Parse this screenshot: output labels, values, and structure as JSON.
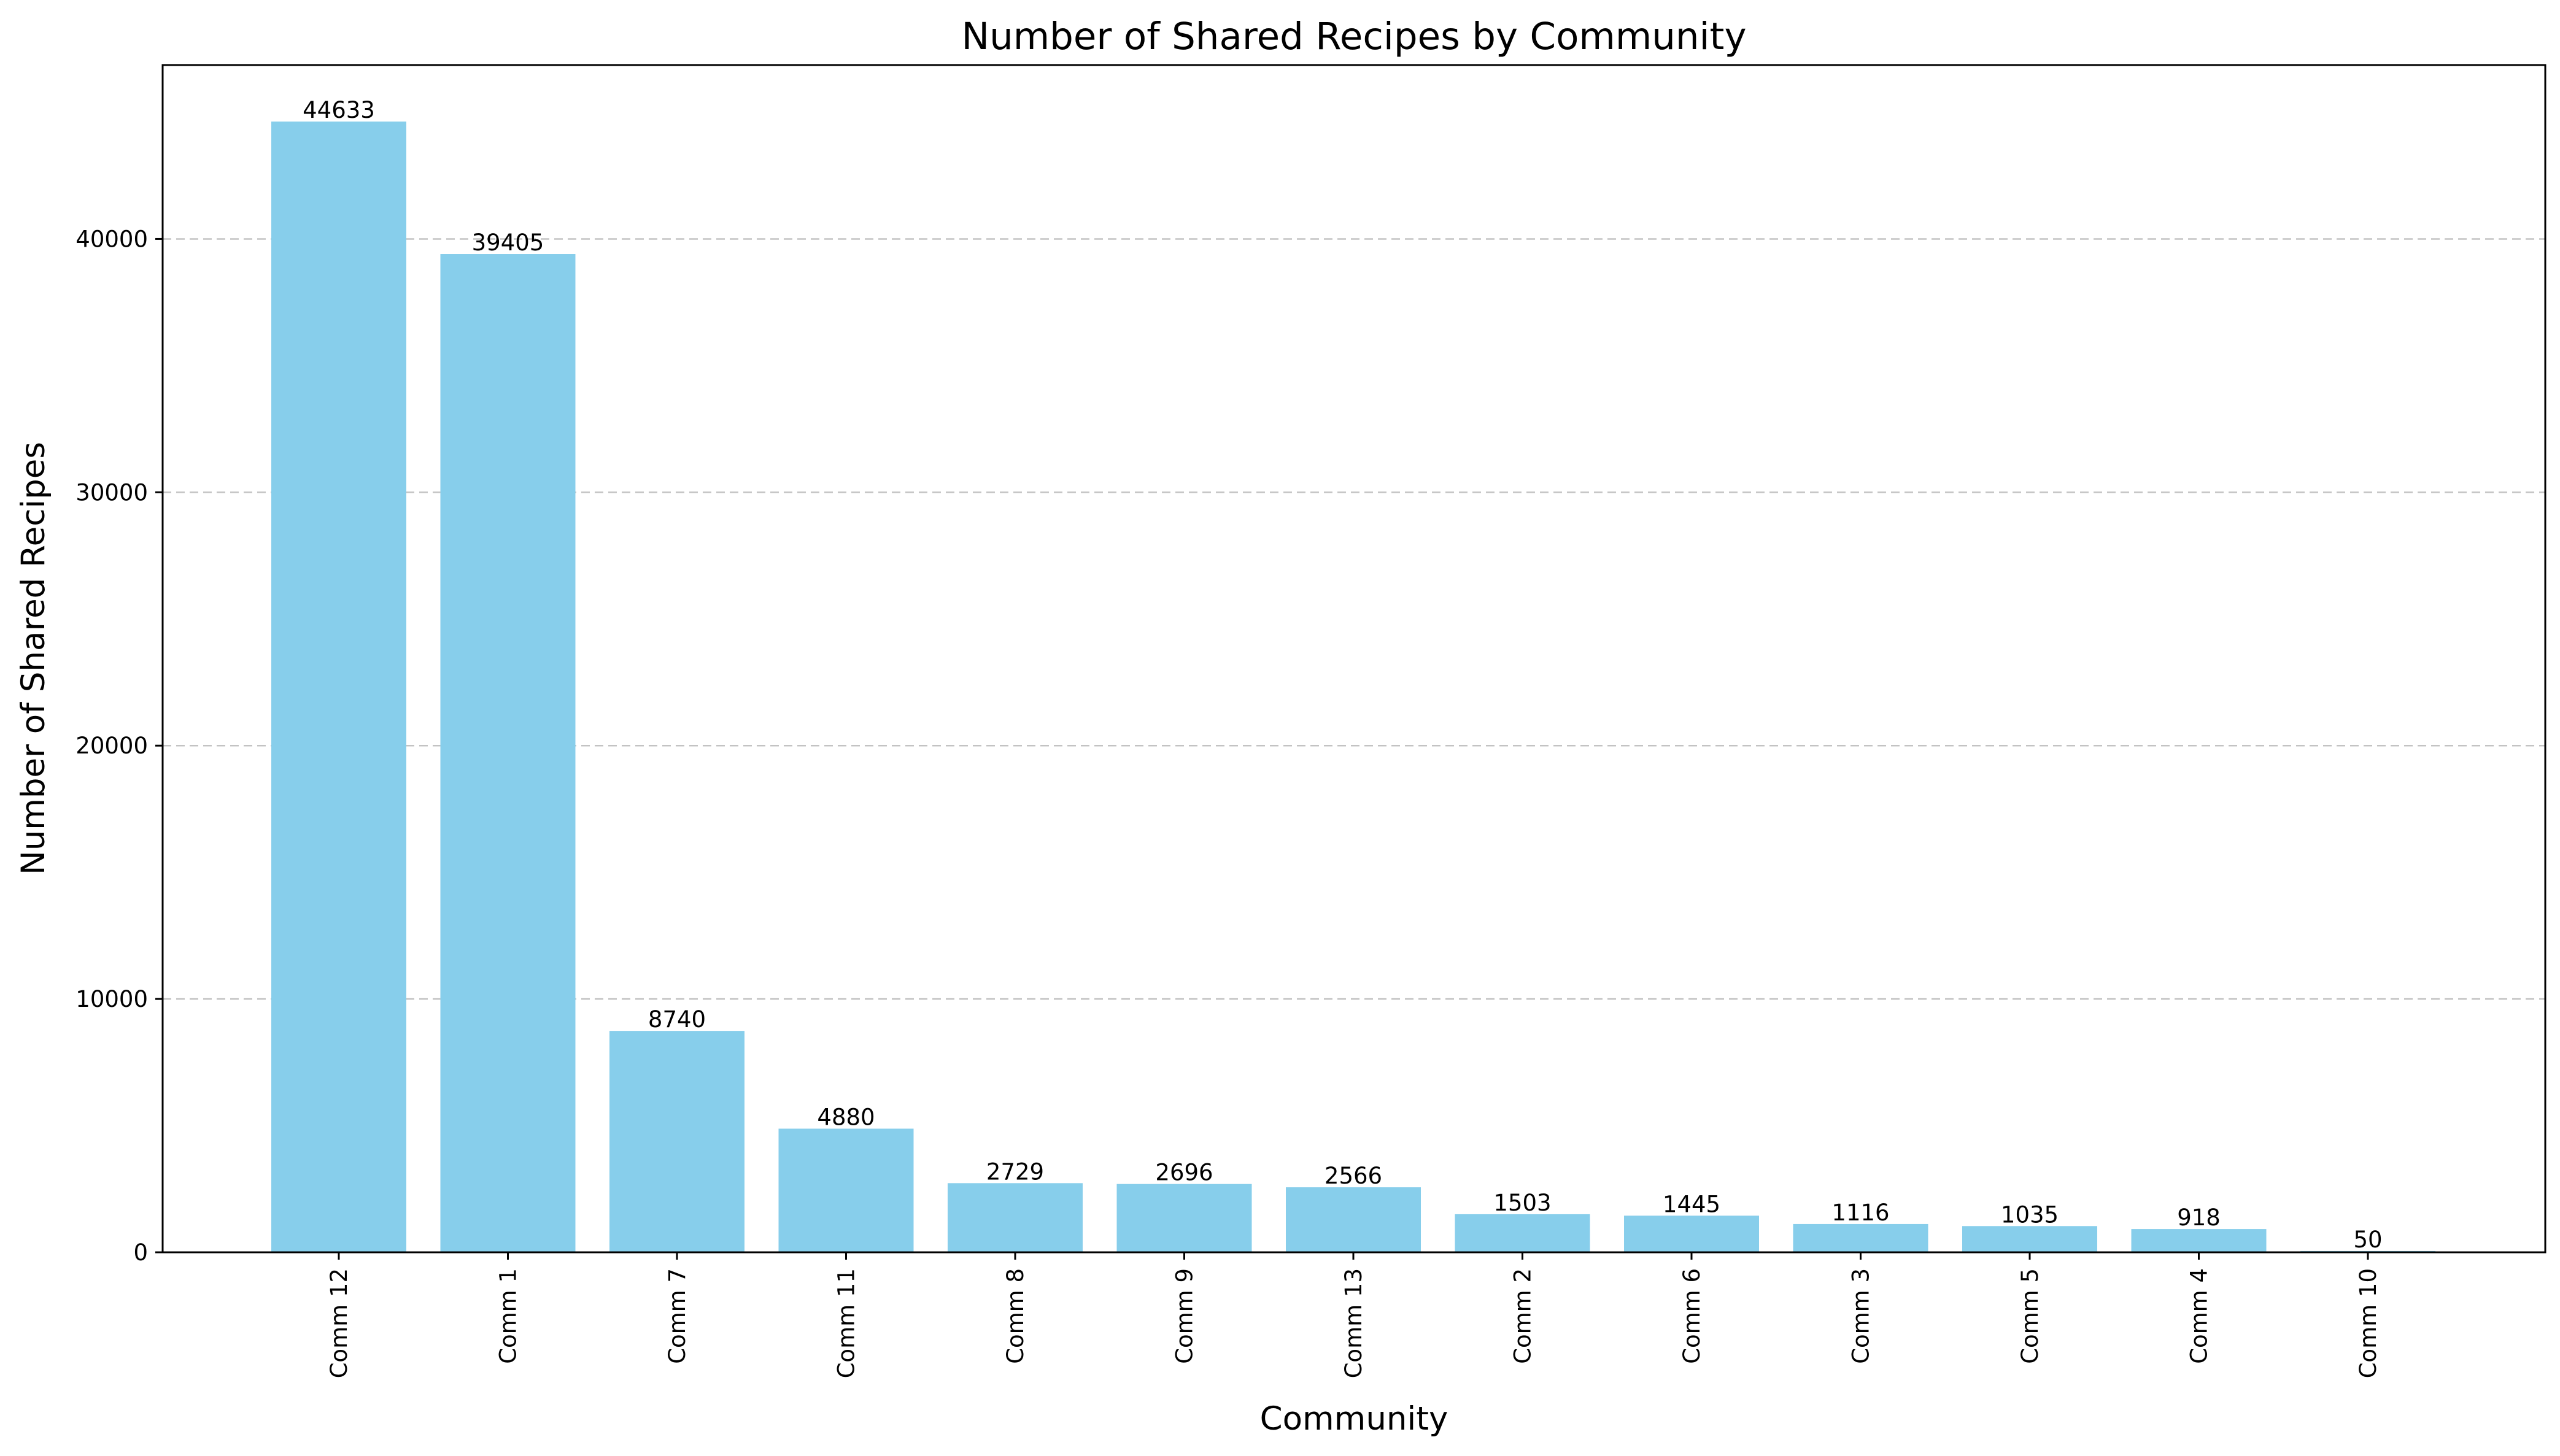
{
  "chart_data": {
    "type": "bar",
    "title": "Number of Shared Recipes by Community",
    "xlabel": "Community",
    "ylabel": "Number of Shared Recipes",
    "categories": [
      "Comm 12",
      "Comm 1",
      "Comm 7",
      "Comm 11",
      "Comm 8",
      "Comm 9",
      "Comm 13",
      "Comm 2",
      "Comm 6",
      "Comm 3",
      "Comm 5",
      "Comm 4",
      "Comm 10"
    ],
    "values": [
      44633,
      39405,
      8740,
      4880,
      2729,
      2696,
      2566,
      1503,
      1445,
      1116,
      1035,
      918,
      50
    ],
    "data_labels": [
      "44633",
      "39405",
      "8740",
      "4880",
      "2729",
      "2696",
      "2566",
      "1503",
      "1445",
      "1116",
      "1035",
      "918",
      "50"
    ],
    "ylim": [
      0,
      46865
    ],
    "yticks": [
      0,
      10000,
      20000,
      30000,
      40000
    ],
    "ytick_labels": [
      "0",
      "10000",
      "20000",
      "30000",
      "40000"
    ],
    "grid": "y-dashed",
    "bar_color": "#87ceeb",
    "xtick_rotation": "vertical"
  }
}
